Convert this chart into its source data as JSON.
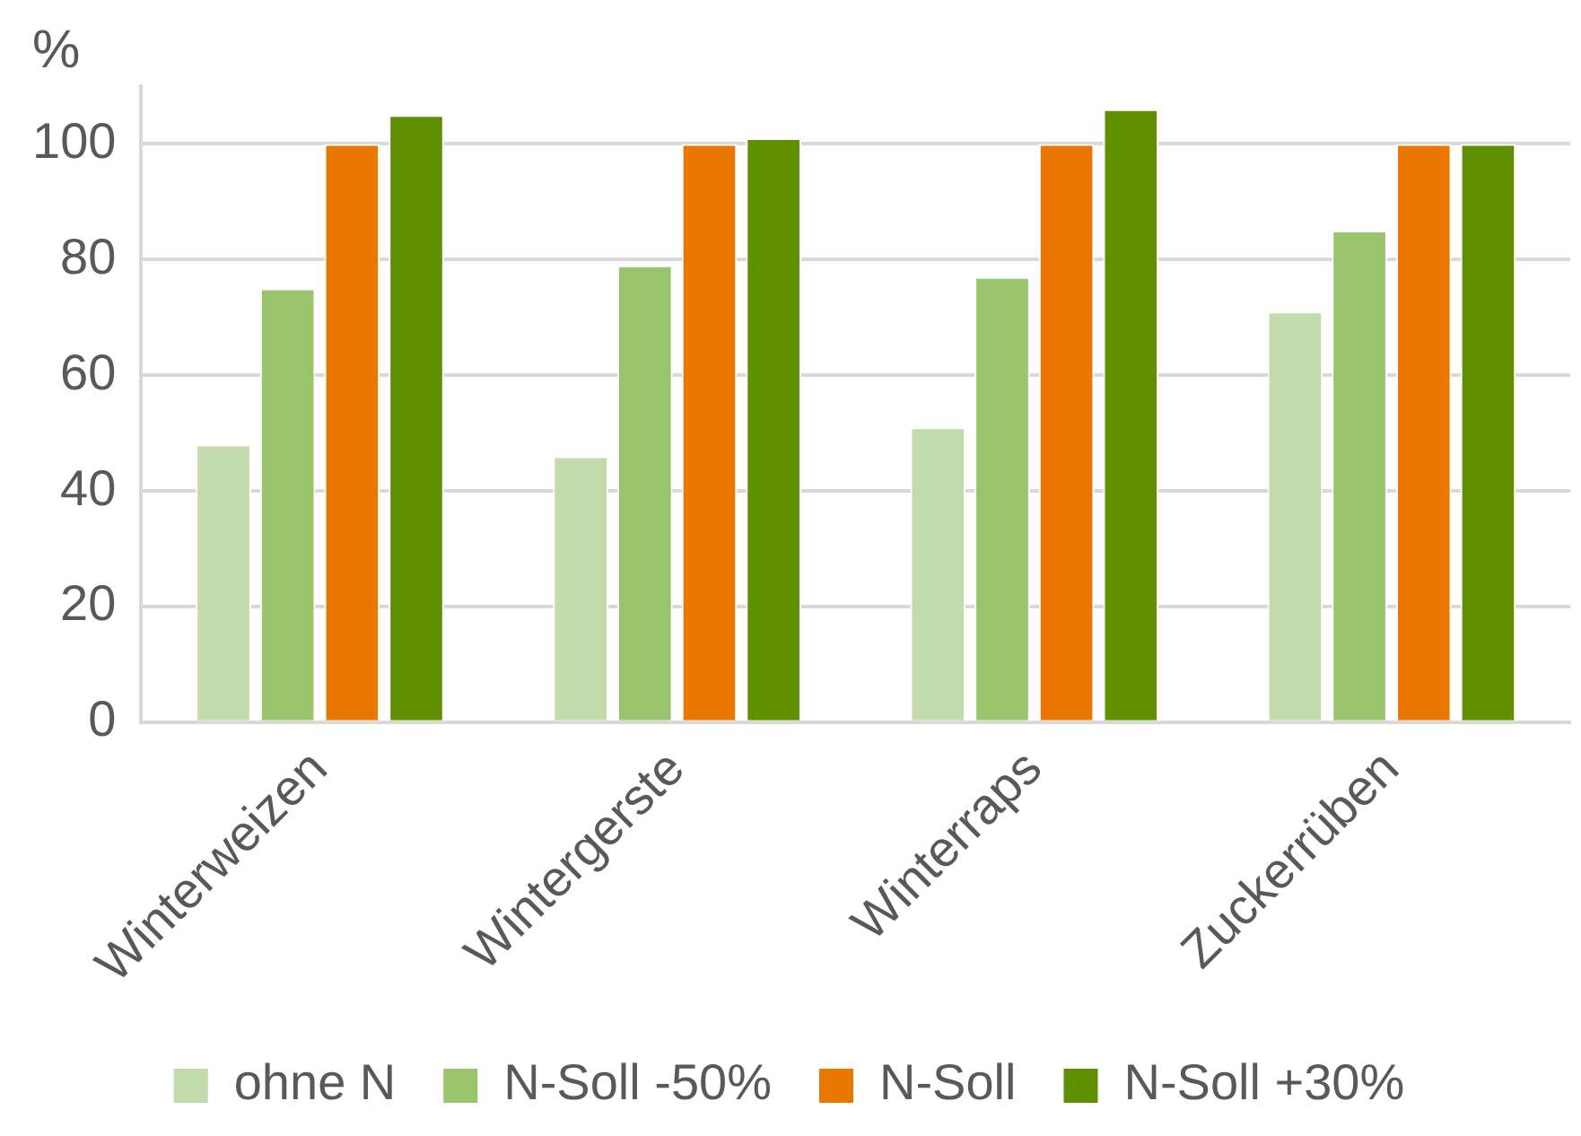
{
  "chart_data": {
    "type": "bar",
    "ylabel": "%",
    "categories": [
      "Winterweizen",
      "Wintergerste",
      "Winterraps",
      "Zuckerrüben"
    ],
    "series": [
      {
        "name": "ohne N",
        "color": "#c3dbab",
        "values": [
          48,
          46,
          51,
          71
        ]
      },
      {
        "name": "N-Soll -50%",
        "color": "#99c46b",
        "values": [
          75,
          79,
          77,
          85
        ]
      },
      {
        "name": "N-Soll",
        "color": "#e97700",
        "values": [
          100,
          100,
          100,
          100
        ]
      },
      {
        "name": "N-Soll +30%",
        "color": "#5f9000",
        "values": [
          105,
          101,
          106,
          100
        ]
      }
    ],
    "ylim": [
      0,
      110
    ],
    "yticks": [
      0,
      20,
      40,
      60,
      80,
      100
    ],
    "grid": "y",
    "legend": "bottom"
  }
}
